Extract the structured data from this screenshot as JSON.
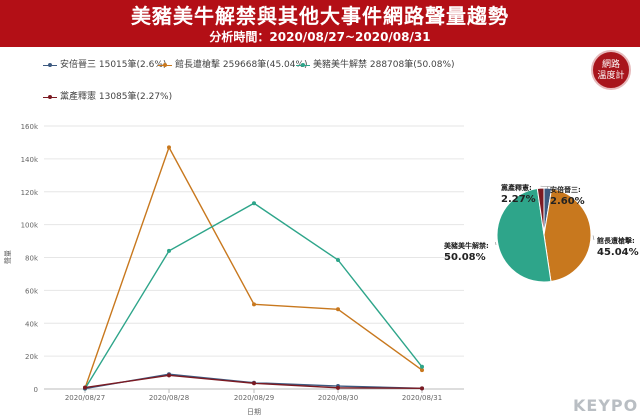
{
  "header": {
    "title": "美豬美牛解禁與其他大事件網路聲量趨勢",
    "subtitle": "分析時間：2020/08/27~2020/08/31"
  },
  "badge": {
    "line1": "網路",
    "line2": "溫度計"
  },
  "brand": "KEYPO",
  "colors": {
    "banner": "#b30f16",
    "series": [
      "#3d5a80",
      "#c8781e",
      "#2ea58a",
      "#7b1a22"
    ]
  },
  "chart_data": [
    {
      "type": "line",
      "xlabel": "日期",
      "ylabel": "聲量",
      "categories": [
        "2020/08/27",
        "2020/08/28",
        "2020/08/29",
        "2020/08/30",
        "2020/08/31"
      ],
      "ylim": [
        0,
        160000
      ],
      "yticks": [
        0,
        20000,
        40000,
        60000,
        80000,
        100000,
        120000,
        140000,
        160000
      ],
      "ytick_labels": [
        "0",
        "20k",
        "40k",
        "60k",
        "80k",
        "100k",
        "120k",
        "140k",
        "160k"
      ],
      "grid": true,
      "legend_position": "top",
      "series": [
        {
          "name": "安倍晉三",
          "legend": "安倍晉三 15015筆(2.6%)",
          "color": "#3d5a80",
          "values": [
            300,
            9000,
            3800,
            1800,
            400
          ]
        },
        {
          "name": "館長遭槍擊",
          "legend": "館長遭槍擊 259668筆(45.04%)",
          "color": "#c8781e",
          "values": [
            500,
            147000,
            51500,
            48500,
            11500
          ]
        },
        {
          "name": "美豬美牛解禁",
          "legend": "美豬美牛解禁 288708筆(50.08%)",
          "color": "#2ea58a",
          "values": [
            200,
            84000,
            113000,
            78500,
            13500
          ]
        },
        {
          "name": "黨產釋憲",
          "legend": "黨產釋憲 13085筆(2.27%)",
          "color": "#7b1a22",
          "values": [
            900,
            8300,
            3500,
            700,
            400
          ]
        }
      ]
    },
    {
      "type": "pie",
      "slices": [
        {
          "name": "安倍晉三",
          "label": "安倍晉三:",
          "pct_label": "2.60%",
          "value": 2.6,
          "color": "#3d5a80"
        },
        {
          "name": "館長遭槍擊",
          "label": "館長遭槍擊:",
          "pct_label": "45.04%",
          "value": 45.04,
          "color": "#c8781e"
        },
        {
          "name": "美豬美牛解禁",
          "label": "美豬美牛解禁:",
          "pct_label": "50.08%",
          "value": 50.08,
          "color": "#2ea58a"
        },
        {
          "name": "黨產釋憲",
          "label": "黨產釋憲:",
          "pct_label": "2.27%",
          "value": 2.27,
          "color": "#7b1a22"
        }
      ]
    }
  ]
}
